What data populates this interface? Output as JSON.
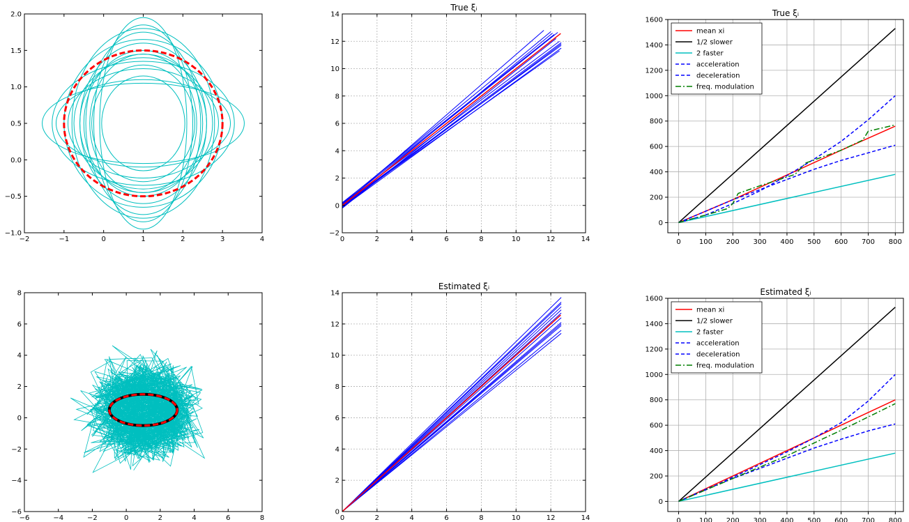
{
  "colors": {
    "cyan": "#00BFBF",
    "red": "#FF0000",
    "blue": "#0000FF",
    "black": "#000000",
    "green": "#007F00",
    "grid": "#b0b0b0"
  },
  "chart_data": [
    {
      "id": "top-left",
      "type": "line",
      "title": "",
      "xlim": [
        -2,
        4
      ],
      "ylim": [
        -1,
        2
      ],
      "xticks": [
        -2,
        -1,
        0,
        1,
        2,
        3,
        4
      ],
      "yticks": [
        -1.0,
        -0.5,
        0.0,
        0.5,
        1.0,
        1.5,
        2.0
      ],
      "xtick_labels": [
        "−2",
        "−1",
        "0",
        "1",
        "2",
        "3",
        "4"
      ],
      "ytick_labels": [
        "−1.0",
        "−0.5",
        "0.0",
        "0.5",
        "1.0",
        "1.5",
        "2.0"
      ],
      "grid": false,
      "series": [
        {
          "kind": "ellipses",
          "color": "cyan",
          "center": [
            1,
            0.5
          ],
          "radii": [
            [
              1.05,
              0.65
            ],
            [
              1.3,
              0.8
            ],
            [
              1.5,
              1.0
            ],
            [
              1.6,
              0.95
            ],
            [
              1.75,
              0.9
            ],
            [
              1.9,
              0.75
            ],
            [
              2.2,
              0.6
            ],
            [
              2.55,
              0.55
            ],
            [
              1.45,
              1.25
            ],
            [
              1.6,
              1.1
            ],
            [
              1.25,
              1.35
            ],
            [
              1.1,
              1.45
            ],
            [
              2.0,
              1.15
            ],
            [
              1.8,
              1.3
            ],
            [
              2.3,
              0.85
            ],
            [
              1.35,
              0.95
            ]
          ]
        },
        {
          "kind": "mean-ellipse",
          "color": "red",
          "center": [
            1,
            0.5
          ],
          "radii": [
            2.0,
            1.0
          ]
        }
      ]
    },
    {
      "id": "top-mid",
      "type": "line",
      "title": "True ξᵢ",
      "xlim": [
        0,
        14
      ],
      "ylim": [
        -2,
        14
      ],
      "xticks": [
        0,
        2,
        4,
        6,
        8,
        10,
        12,
        14
      ],
      "yticks": [
        -2,
        0,
        2,
        4,
        6,
        8,
        10,
        12,
        14
      ],
      "xtick_labels": [
        "0",
        "2",
        "4",
        "6",
        "8",
        "10",
        "12",
        "14"
      ],
      "ytick_labels": [
        "−2",
        "0",
        "2",
        "4",
        "6",
        "8",
        "10",
        "12",
        "14"
      ],
      "grid": true,
      "series": [
        {
          "kind": "lines",
          "color": "blue",
          "segments": [
            [
              [
                0,
                0.0
              ],
              [
                11.6,
                12.8
              ]
            ],
            [
              [
                0,
                0.15
              ],
              [
                12.0,
                12.7
              ]
            ],
            [
              [
                0,
                -0.1
              ],
              [
                12.1,
                12.6
              ]
            ],
            [
              [
                0,
                0.2
              ],
              [
                12.2,
                12.5
              ]
            ],
            [
              [
                0,
                -0.2
              ],
              [
                12.3,
                12.2
              ]
            ],
            [
              [
                0,
                0.1
              ],
              [
                12.5,
                12.0
              ]
            ],
            [
              [
                0,
                -0.05
              ],
              [
                12.6,
                11.9
              ]
            ],
            [
              [
                0,
                0.05
              ],
              [
                12.6,
                11.7
              ]
            ],
            [
              [
                0,
                -0.15
              ],
              [
                12.6,
                11.5
              ]
            ],
            [
              [
                0,
                0.0
              ],
              [
                12.5,
                11.3
              ]
            ],
            [
              [
                0,
                0.1
              ],
              [
                12.4,
                12.65
              ]
            ],
            [
              [
                0,
                -0.1
              ],
              [
                12.6,
                11.8
              ]
            ]
          ]
        },
        {
          "kind": "lines",
          "color": "red",
          "segments": [
            [
              [
                0,
                0
              ],
              [
                12.57,
                12.57
              ]
            ]
          ]
        }
      ]
    },
    {
      "id": "top-right",
      "type": "line",
      "title": "True ξᵢ",
      "xlim": [
        -40,
        830
      ],
      "ylim": [
        -80,
        1600
      ],
      "xticks": [
        0,
        100,
        200,
        300,
        400,
        500,
        600,
        700,
        800
      ],
      "yticks": [
        0,
        200,
        400,
        600,
        800,
        1000,
        1200,
        1400,
        1600
      ],
      "xtick_labels": [
        "0",
        "100",
        "200",
        "300",
        "400",
        "500",
        "600",
        "700",
        "800"
      ],
      "ytick_labels": [
        "0",
        "200",
        "400",
        "600",
        "800",
        "1000",
        "1200",
        "1400",
        "1600"
      ],
      "grid": true,
      "legend": [
        "mean xi",
        "1/2 slower",
        "2 faster",
        "acceleration",
        "deceleration",
        "freq. modulation"
      ],
      "series": [
        {
          "name": "mean xi",
          "color": "red",
          "dash": "",
          "points": [
            [
              0,
              0
            ],
            [
              200,
              180
            ],
            [
              400,
              375
            ],
            [
              600,
              570
            ],
            [
              800,
              760
            ]
          ]
        },
        {
          "name": "1/2 slower",
          "color": "black",
          "dash": "",
          "points": [
            [
              0,
              0
            ],
            [
              800,
              1530
            ]
          ]
        },
        {
          "name": "2 faster",
          "color": "cyan",
          "dash": "",
          "points": [
            [
              0,
              0
            ],
            [
              800,
              380
            ]
          ]
        },
        {
          "name": "acceleration",
          "color": "blue",
          "dash": "5,3",
          "points": [
            [
              0,
              0
            ],
            [
              100,
              60
            ],
            [
              200,
              150
            ],
            [
              300,
              250
            ],
            [
              400,
              370
            ],
            [
              500,
              500
            ],
            [
              600,
              640
            ],
            [
              700,
              810
            ],
            [
              800,
              1000
            ]
          ]
        },
        {
          "name": "deceleration",
          "color": "blue",
          "dash": "5,3",
          "points": [
            [
              0,
              0
            ],
            [
              100,
              90
            ],
            [
              200,
              180
            ],
            [
              300,
              260
            ],
            [
              400,
              340
            ],
            [
              500,
              420
            ],
            [
              600,
              490
            ],
            [
              700,
              550
            ],
            [
              800,
              610
            ]
          ]
        },
        {
          "name": "freq. modulation",
          "color": "green",
          "dash": "8,3,2,3",
          "points": [
            [
              0,
              0
            ],
            [
              100,
              60
            ],
            [
              180,
              110
            ],
            [
              200,
              150
            ],
            [
              220,
              230
            ],
            [
              300,
              290
            ],
            [
              430,
              380
            ],
            [
              470,
              470
            ],
            [
              600,
              570
            ],
            [
              680,
              650
            ],
            [
              700,
              720
            ],
            [
              800,
              770
            ]
          ]
        }
      ]
    },
    {
      "id": "bottom-left",
      "type": "line",
      "title": "",
      "xlim": [
        -6,
        8
      ],
      "ylim": [
        -6,
        8
      ],
      "xticks": [
        -6,
        -4,
        -2,
        0,
        2,
        4,
        6,
        8
      ],
      "yticks": [
        -6,
        -4,
        -2,
        0,
        2,
        4,
        6,
        8
      ],
      "xtick_labels": [
        "−6",
        "−4",
        "−2",
        "0",
        "2",
        "4",
        "6",
        "8"
      ],
      "ytick_labels": [
        "−6",
        "−4",
        "−2",
        "0",
        "2",
        "4",
        "6",
        "8"
      ],
      "grid": false,
      "series": [
        {
          "kind": "noise",
          "color": "cyan",
          "center": [
            1,
            0.5
          ],
          "spread": [
            5.6,
            5.5
          ],
          "count": 900
        },
        {
          "kind": "mean-ellipse",
          "color": "black",
          "center": [
            1,
            0.5
          ],
          "radii": [
            2.0,
            1.0
          ]
        },
        {
          "kind": "mean-ellipse",
          "color": "red",
          "center": [
            1,
            0.5
          ],
          "radii": [
            2.0,
            1.0
          ]
        }
      ]
    },
    {
      "id": "bottom-mid",
      "type": "line",
      "title": "Estimated ξᵢ",
      "xlim": [
        0,
        14
      ],
      "ylim": [
        0,
        14
      ],
      "xticks": [
        0,
        2,
        4,
        6,
        8,
        10,
        12,
        14
      ],
      "yticks": [
        0,
        2,
        4,
        6,
        8,
        10,
        12,
        14
      ],
      "xtick_labels": [
        "0",
        "2",
        "4",
        "6",
        "8",
        "10",
        "12",
        "14"
      ],
      "ytick_labels": [
        "0",
        "2",
        "4",
        "6",
        "8",
        "10",
        "12",
        "14"
      ],
      "grid": true,
      "series": [
        {
          "kind": "lines",
          "color": "blue",
          "segments": [
            [
              [
                0,
                0
              ],
              [
                12.6,
                13.7
              ]
            ],
            [
              [
                0,
                0
              ],
              [
                12.6,
                13.4
              ]
            ],
            [
              [
                0,
                0
              ],
              [
                12.6,
                13.1
              ]
            ],
            [
              [
                0,
                0
              ],
              [
                12.6,
                12.9
              ]
            ],
            [
              [
                0,
                0
              ],
              [
                12.6,
                12.7
              ]
            ],
            [
              [
                0,
                0
              ],
              [
                12.6,
                12.4
              ]
            ],
            [
              [
                0,
                0
              ],
              [
                12.6,
                12.1
              ]
            ],
            [
              [
                0,
                0
              ],
              [
                12.6,
                11.9
              ]
            ],
            [
              [
                0,
                0
              ],
              [
                12.6,
                11.6
              ]
            ],
            [
              [
                0,
                0
              ],
              [
                12.6,
                11.4
              ]
            ],
            [
              [
                0,
                0
              ],
              [
                12.6,
                13.3
              ]
            ],
            [
              [
                0,
                0
              ],
              [
                12.6,
                12.0
              ]
            ]
          ]
        },
        {
          "kind": "lines",
          "color": "red",
          "segments": [
            [
              [
                0,
                0
              ],
              [
                12.57,
                12.57
              ]
            ]
          ]
        }
      ]
    },
    {
      "id": "bottom-right",
      "type": "line",
      "title": "Estimated ξᵢ",
      "xlim": [
        -40,
        830
      ],
      "ylim": [
        -80,
        1600
      ],
      "xticks": [
        0,
        100,
        200,
        300,
        400,
        500,
        600,
        700,
        800
      ],
      "yticks": [
        0,
        200,
        400,
        600,
        800,
        1000,
        1200,
        1400,
        1600
      ],
      "xtick_labels": [
        "0",
        "100",
        "200",
        "300",
        "400",
        "500",
        "600",
        "700",
        "800"
      ],
      "ytick_labels": [
        "0",
        "200",
        "400",
        "600",
        "800",
        "1000",
        "1200",
        "1400",
        "1600"
      ],
      "grid": true,
      "legend": [
        "mean xi",
        "1/2 slower",
        "2 faster",
        "acceleration",
        "deceleration",
        "freq. modulation"
      ],
      "series": [
        {
          "name": "mean xi",
          "color": "red",
          "dash": "",
          "points": [
            [
              0,
              0
            ],
            [
              200,
              200
            ],
            [
              400,
              400
            ],
            [
              600,
              600
            ],
            [
              800,
              800
            ]
          ]
        },
        {
          "name": "1/2 slower",
          "color": "black",
          "dash": "",
          "points": [
            [
              0,
              0
            ],
            [
              800,
              1530
            ]
          ]
        },
        {
          "name": "2 faster",
          "color": "cyan",
          "dash": "",
          "points": [
            [
              0,
              0
            ],
            [
              800,
              380
            ]
          ]
        },
        {
          "name": "acceleration",
          "color": "blue",
          "dash": "5,3",
          "points": [
            [
              0,
              0
            ],
            [
              100,
              90
            ],
            [
              200,
              190
            ],
            [
              300,
              290
            ],
            [
              400,
              390
            ],
            [
              500,
              500
            ],
            [
              600,
              620
            ],
            [
              700,
              790
            ],
            [
              800,
              1000
            ]
          ]
        },
        {
          "name": "deceleration",
          "color": "blue",
          "dash": "5,3",
          "points": [
            [
              0,
              0
            ],
            [
              100,
              95
            ],
            [
              200,
              180
            ],
            [
              300,
              260
            ],
            [
              400,
              340
            ],
            [
              500,
              420
            ],
            [
              600,
              490
            ],
            [
              700,
              555
            ],
            [
              800,
              610
            ]
          ]
        },
        {
          "name": "freq. modulation",
          "color": "green",
          "dash": "8,3,2,3",
          "points": [
            [
              0,
              0
            ],
            [
              200,
              180
            ],
            [
              400,
              360
            ],
            [
              600,
              560
            ],
            [
              800,
              770
            ]
          ]
        }
      ]
    }
  ]
}
